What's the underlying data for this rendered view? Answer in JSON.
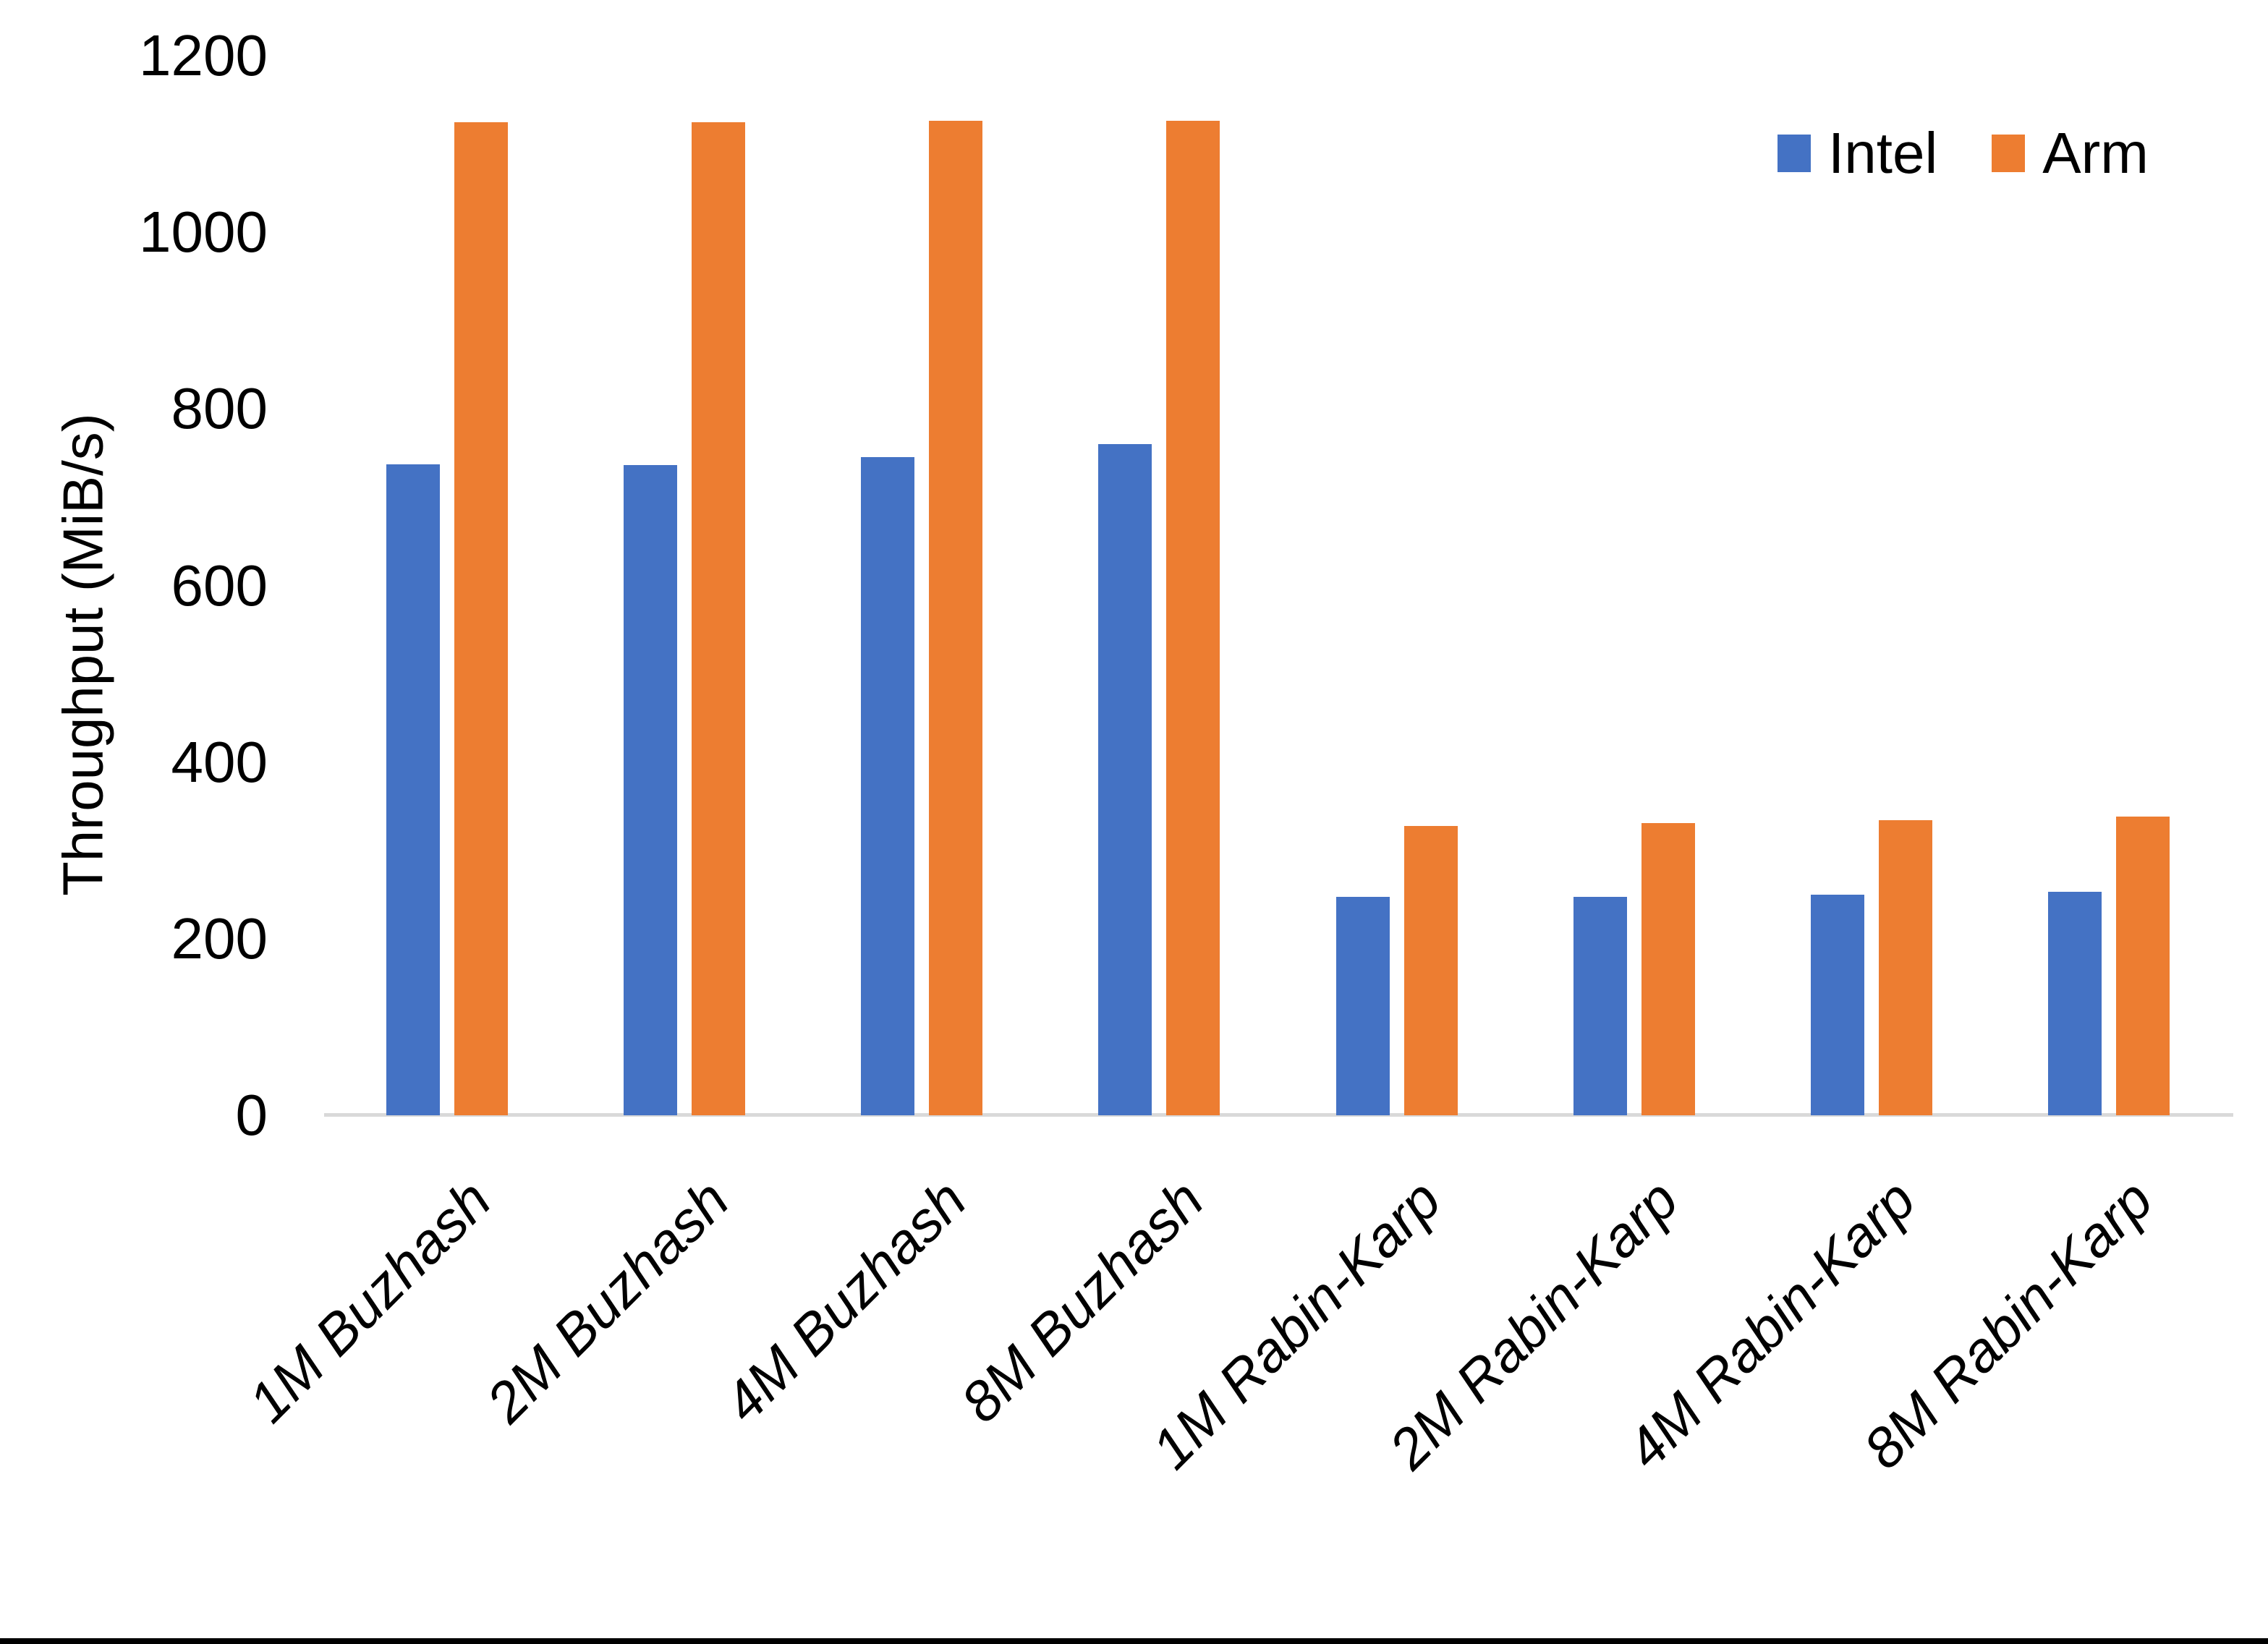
{
  "chart_data": {
    "type": "bar",
    "categories": [
      "1M Buzhash",
      "2M Buzhash",
      "4M Buzhash",
      "8M Buzhash",
      "1M Rabin-Karp",
      "2M Rabin-Karp",
      "4M Rabin-Karp",
      "8M Rabin-Karp"
    ],
    "series": [
      {
        "name": "Intel",
        "color": "#4472C4",
        "values": [
          737,
          736,
          745,
          760,
          247,
          247,
          250,
          253
        ]
      },
      {
        "name": "Arm",
        "color": "#ED7D31",
        "values": [
          1125,
          1125,
          1126,
          1126,
          328,
          331,
          334,
          338
        ]
      }
    ],
    "title": "",
    "xlabel": "",
    "ylabel": "Throughput (MiB/s)",
    "ylim": [
      0,
      1200
    ],
    "yticks": [
      0,
      200,
      400,
      600,
      800,
      1000,
      1200
    ],
    "grid": false,
    "legend_position": "top-right"
  },
  "colors": {
    "background": "#FFFFFF",
    "axis_line": "#D9D9D9",
    "text": "#000000",
    "bottom_border": "#000000"
  }
}
